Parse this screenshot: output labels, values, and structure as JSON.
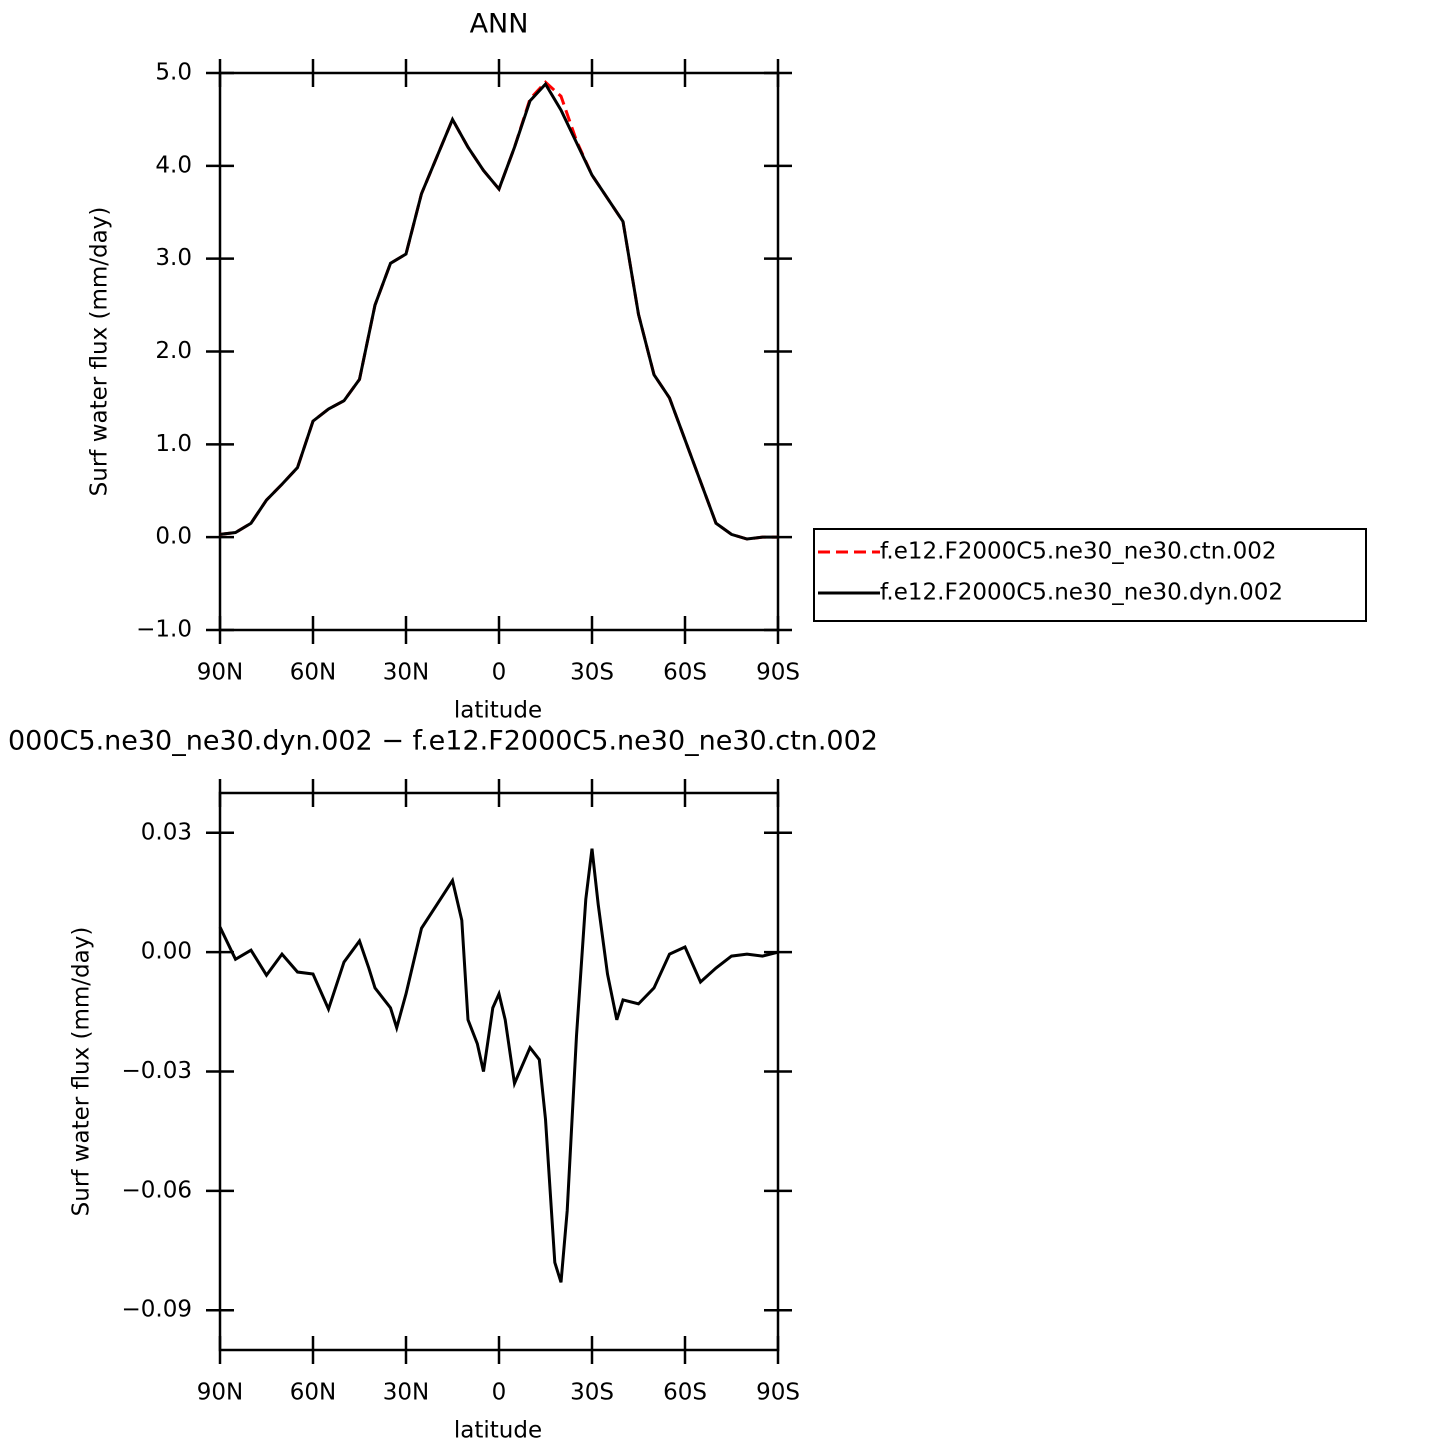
{
  "chart_data": [
    {
      "type": "line",
      "title": "ANN",
      "xlabel": "latitude",
      "ylabel": "Surf water flux (mm/day)",
      "x": [
        90,
        85,
        80,
        75,
        70,
        65,
        60,
        55,
        50,
        45,
        40,
        35,
        30,
        25,
        20,
        15,
        10,
        5,
        0,
        -5,
        -10,
        -15,
        -20,
        -25,
        -30,
        -35,
        -40,
        -45,
        -50,
        -55,
        -60,
        -65,
        -70,
        -75,
        -80,
        -85,
        -90
      ],
      "series": [
        {
          "name": "f.e12.F2000C5.ne30_ne30.ctn.002",
          "color": "#ff0000",
          "dash": true,
          "values": [
            0.03,
            0.05,
            0.15,
            0.4,
            0.57,
            0.75,
            1.25,
            1.38,
            1.47,
            1.7,
            2.5,
            2.95,
            3.05,
            3.7,
            4.1,
            4.5,
            4.2,
            3.95,
            3.75,
            4.2,
            4.72,
            4.9,
            4.75,
            4.27,
            3.9,
            3.65,
            3.4,
            2.4,
            1.75,
            1.5,
            1.05,
            0.6,
            0.15,
            0.03,
            -0.02,
            0.0,
            0.0
          ]
        },
        {
          "name": "f.e12.F2000C5.ne30_ne30.dyn.002",
          "color": "#000000",
          "dash": false,
          "values": [
            0.03,
            0.05,
            0.15,
            0.4,
            0.57,
            0.75,
            1.25,
            1.38,
            1.47,
            1.7,
            2.5,
            2.95,
            3.05,
            3.7,
            4.1,
            4.5,
            4.2,
            3.95,
            3.75,
            4.2,
            4.7,
            4.88,
            4.6,
            4.25,
            3.9,
            3.65,
            3.4,
            2.4,
            1.75,
            1.5,
            1.05,
            0.6,
            0.15,
            0.03,
            -0.02,
            0.0,
            0.0
          ]
        }
      ],
      "xlim": [
        90,
        -90
      ],
      "xticks": [
        {
          "value": 90,
          "label": "90N"
        },
        {
          "value": 60,
          "label": "60N"
        },
        {
          "value": 30,
          "label": "30N"
        },
        0,
        {
          "value": -30,
          "label": "30S"
        },
        {
          "value": -60,
          "label": "60S"
        },
        {
          "value": -90,
          "label": "90S"
        }
      ],
      "ylim": [
        -1,
        5
      ],
      "yticks": [
        {
          "value": -1,
          "label": "−1.0"
        },
        {
          "value": 0,
          "label": "0.0"
        },
        {
          "value": 1,
          "label": "1.0"
        },
        {
          "value": 2,
          "label": "2.0"
        },
        {
          "value": 3,
          "label": "3.0"
        },
        {
          "value": 4,
          "label": "4.0"
        },
        {
          "value": 5,
          "label": "5.0"
        }
      ],
      "legend": "right"
    },
    {
      "type": "line",
      "title": "000C5.ne30_ne30.dyn.002 − f.e12.F2000C5.ne30_ne30.ctn.002",
      "xlabel": "latitude",
      "ylabel": "Surf water flux (mm/day)",
      "x": [
        90,
        85,
        80,
        75,
        70,
        65,
        60,
        55,
        50,
        45,
        42,
        40,
        35,
        33,
        30,
        25,
        20,
        15,
        12,
        10,
        7,
        5,
        2,
        0,
        -2,
        -5,
        -10,
        -13,
        -15,
        -18,
        -20,
        -22,
        -25,
        -28,
        -30,
        -32,
        -35,
        -38,
        -40,
        -45,
        -50,
        -55,
        -60,
        -65,
        -70,
        -75,
        -80,
        -85,
        -90
      ],
      "values": [
        0.0063,
        -0.0018,
        0.0005,
        -0.0058,
        -0.0005,
        -0.005,
        -0.0055,
        -0.0143,
        -0.0025,
        0.0028,
        -0.004,
        -0.009,
        -0.014,
        -0.019,
        -0.0105,
        0.006,
        0.012,
        0.018,
        0.008,
        -0.017,
        -0.023,
        -0.03,
        -0.014,
        -0.0105,
        -0.017,
        -0.033,
        -0.024,
        -0.027,
        -0.042,
        -0.078,
        -0.083,
        -0.065,
        -0.021,
        0.0133,
        0.026,
        0.012,
        -0.0055,
        -0.017,
        -0.012,
        -0.013,
        -0.009,
        -0.0005,
        0.0013,
        -0.0075,
        -0.004,
        -0.001,
        -0.0005,
        -0.001,
        0
      ],
      "color": "#000000",
      "xlim": [
        90,
        -90
      ],
      "xticks": [
        {
          "value": 90,
          "label": "90N"
        },
        {
          "value": 60,
          "label": "60N"
        },
        {
          "value": 30,
          "label": "30N"
        },
        0,
        {
          "value": -30,
          "label": "30S"
        },
        {
          "value": -60,
          "label": "60S"
        },
        {
          "value": -90,
          "label": "90S"
        }
      ],
      "ylim": [
        -0.1,
        0.04
      ],
      "yticks": [
        {
          "value": -0.09,
          "label": "−0.09"
        },
        {
          "value": -0.06,
          "label": "−0.06"
        },
        {
          "value": -0.03,
          "label": "−0.03"
        },
        {
          "value": 0,
          "label": "0.00"
        },
        {
          "value": 0.03,
          "label": "0.03"
        }
      ]
    }
  ]
}
